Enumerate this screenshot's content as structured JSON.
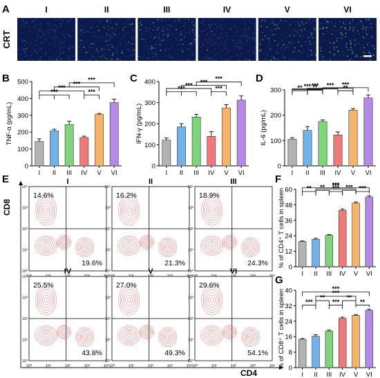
{
  "figure": {
    "colors": {
      "I": "#b3b3b3",
      "II": "#6fb3ec",
      "III": "#7ed57a",
      "IV": "#f07a7a",
      "V": "#f8b36a",
      "VI": "#b38be6",
      "contour": "#e05050",
      "micro_bg": "#0b1a4a"
    },
    "panel_A": {
      "letter": "A",
      "row_label": "CRT",
      "columns": [
        "I",
        "II",
        "III",
        "IV",
        "V",
        "VI"
      ],
      "green_intensity": [
        0.02,
        0.18,
        0.22,
        0.05,
        0.35,
        0.55
      ]
    },
    "panel_B": {
      "letter": "B"
    },
    "panel_C": {
      "letter": "C"
    },
    "panel_D": {
      "letter": "D"
    },
    "panel_E": {
      "letter": "E",
      "x_label": "CD4",
      "y_label": "CD8",
      "tick_labels": [
        "10⁰",
        "10¹",
        "10²",
        "10³",
        "10⁴"
      ],
      "plots": [
        {
          "group": "I",
          "upper_left": "14.6%",
          "lower_right": "19.6%"
        },
        {
          "group": "II",
          "upper_left": "16.2%",
          "lower_right": "21.3%"
        },
        {
          "group": "III",
          "upper_left": "18.9%",
          "lower_right": "24.3%"
        },
        {
          "group": "IV",
          "upper_left": "25.5%",
          "lower_right": "43.8%"
        },
        {
          "group": "V",
          "upper_left": "27.0%",
          "lower_right": "49.3%"
        },
        {
          "group": "VI",
          "upper_left": "29.6%",
          "lower_right": "54.1%"
        }
      ]
    },
    "panel_F": {
      "letter": "F"
    },
    "panel_G": {
      "letter": "G"
    }
  },
  "chart_data": [
    {
      "id": "B",
      "type": "bar",
      "categories": [
        "I",
        "II",
        "III",
        "IV",
        "V",
        "VI"
      ],
      "values": [
        145,
        207,
        245,
        168,
        305,
        375
      ],
      "errors": [
        15,
        10,
        20,
        8,
        6,
        20
      ],
      "ylabel": "TNF-α (pg/mL)",
      "ylim": [
        0,
        500
      ],
      "yticks": [
        0,
        100,
        200,
        300,
        400,
        500
      ],
      "significance": [
        {
          "from": "I",
          "to": [
            "II",
            "III"
          ],
          "label": "***"
        },
        {
          "from": "IV",
          "to": [
            "V"
          ],
          "label": "***"
        },
        {
          "from": "I",
          "to": [
            "IV"
          ],
          "label": "***"
        },
        {
          "from": "II",
          "to": [
            "V"
          ],
          "label": "***"
        },
        {
          "from": "III",
          "to": [
            "VI"
          ],
          "label": "***"
        }
      ]
    },
    {
      "id": "C",
      "type": "bar",
      "categories": [
        "I",
        "II",
        "III",
        "IV",
        "V",
        "VI"
      ],
      "values": [
        122,
        185,
        232,
        140,
        275,
        312
      ],
      "errors": [
        10,
        15,
        12,
        22,
        15,
        20
      ],
      "ylabel": "IFN-γ (pg/mL)",
      "ylim": [
        0,
        400
      ],
      "yticks": [
        0,
        100,
        200,
        300,
        400
      ],
      "significance": [
        {
          "from": "I",
          "to": [
            "II",
            "III"
          ],
          "label": "***"
        },
        {
          "from": "IV",
          "to": [
            "V"
          ],
          "label": "***"
        },
        {
          "from": "I",
          "to": [
            "IV"
          ],
          "label": "***"
        },
        {
          "from": "II",
          "to": [
            "V"
          ],
          "label": "***"
        },
        {
          "from": "III",
          "to": [
            "VI"
          ],
          "label": "***"
        }
      ]
    },
    {
      "id": "D",
      "type": "bar",
      "categories": [
        "I",
        "II",
        "III",
        "IV",
        "V",
        "VI"
      ],
      "values": [
        105,
        140,
        175,
        122,
        220,
        268
      ],
      "errors": [
        6,
        15,
        6,
        12,
        6,
        12
      ],
      "ylabel": "IL-6 (pg/mL)",
      "ylim": [
        0,
        300
      ],
      "yticks": [
        0,
        100,
        200,
        300
      ],
      "significance": [
        {
          "from": "I",
          "to": [
            "II"
          ],
          "label": "**"
        },
        {
          "from": "II",
          "to": [
            "III"
          ],
          "label": "**"
        },
        {
          "from": "IV",
          "to": [
            "V"
          ],
          "label": "**"
        },
        {
          "from": "I",
          "to": [
            "III"
          ],
          "label": "***"
        },
        {
          "from": "I",
          "to": [
            "IV"
          ],
          "label": "***"
        },
        {
          "from": "II",
          "to": [
            "V"
          ],
          "label": "***"
        },
        {
          "from": "III",
          "to": [
            "VI"
          ],
          "label": "***"
        }
      ]
    },
    {
      "id": "F",
      "type": "bar",
      "categories": [
        "I",
        "II",
        "III",
        "IV",
        "V",
        "VI"
      ],
      "values": [
        19.6,
        21.3,
        24.3,
        43.8,
        49.3,
        54.1
      ],
      "errors": [
        0.4,
        0.8,
        0.6,
        1.0,
        0.9,
        1.0
      ],
      "ylabel": "% of CD4⁺ T cells in spleen",
      "ylim": [
        0,
        60
      ],
      "yticks": [
        0,
        12,
        24,
        36,
        48,
        60
      ],
      "significance": [
        {
          "from": "I",
          "to": [
            "II"
          ],
          "label": "**"
        },
        {
          "from": "II",
          "to": [
            "III"
          ],
          "label": "**"
        },
        {
          "from": "IV",
          "to": [
            "V"
          ],
          "label": "***"
        },
        {
          "from": "V",
          "to": [
            "VI"
          ],
          "label": "***"
        },
        {
          "from": "III",
          "to": [
            "IV"
          ],
          "label": "***"
        },
        {
          "from": "II",
          "to": [
            "V"
          ],
          "label": "***"
        },
        {
          "from": "I",
          "to": [
            "VI"
          ],
          "label": "***"
        }
      ]
    },
    {
      "id": "G",
      "type": "bar",
      "categories": [
        "I",
        "II",
        "III",
        "IV",
        "V",
        "VI"
      ],
      "values": [
        14.6,
        16.2,
        18.9,
        25.5,
        27.0,
        29.6
      ],
      "errors": [
        0.5,
        0.8,
        0.5,
        0.6,
        0.4,
        0.6
      ],
      "ylabel": "% of CD8⁺ T cells in spleen",
      "ylim": [
        0,
        40
      ],
      "yticks": [
        0,
        8,
        16,
        24,
        32,
        40
      ],
      "significance": [
        {
          "from": "I",
          "to": [
            "II"
          ],
          "label": "***"
        },
        {
          "from": "II",
          "to": [
            "III"
          ],
          "label": "**"
        },
        {
          "from": "IV",
          "to": [
            "V"
          ],
          "label": "**"
        },
        {
          "from": "V",
          "to": [
            "VI"
          ],
          "label": "**"
        },
        {
          "from": "III",
          "to": [
            "IV"
          ],
          "label": "***"
        },
        {
          "from": "II",
          "to": [
            "V"
          ],
          "label": "***"
        },
        {
          "from": "I",
          "to": [
            "VI"
          ],
          "label": "***"
        }
      ]
    }
  ]
}
